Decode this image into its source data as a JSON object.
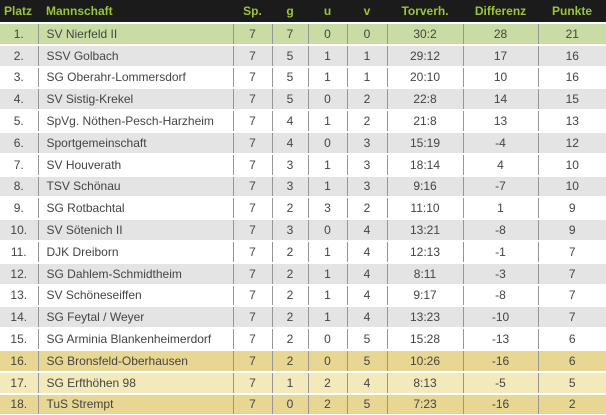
{
  "table": {
    "columns": [
      {
        "key": "platz",
        "label": "Platz"
      },
      {
        "key": "mannschaft",
        "label": "Mannschaft"
      },
      {
        "key": "sp",
        "label": "Sp."
      },
      {
        "key": "g",
        "label": "g"
      },
      {
        "key": "u",
        "label": "u"
      },
      {
        "key": "v",
        "label": "v"
      },
      {
        "key": "torverh",
        "label": "Torverh."
      },
      {
        "key": "differenz",
        "label": "Differenz"
      },
      {
        "key": "punkte",
        "label": "Punkte"
      }
    ],
    "rows": [
      {
        "platz": "1.",
        "mannschaft": "SV Nierfeld II",
        "sp": "7",
        "g": "7",
        "u": "0",
        "v": "0",
        "torverh": "30:2",
        "differenz": "28",
        "punkte": "21",
        "highlight": "leader"
      },
      {
        "platz": "2.",
        "mannschaft": "SSV Golbach",
        "sp": "7",
        "g": "5",
        "u": "1",
        "v": "1",
        "torverh": "29:12",
        "differenz": "17",
        "punkte": "16",
        "highlight": "none"
      },
      {
        "platz": "3.",
        "mannschaft": "SG Oberahr-Lommersdorf",
        "sp": "7",
        "g": "5",
        "u": "1",
        "v": "1",
        "torverh": "20:10",
        "differenz": "10",
        "punkte": "16",
        "highlight": "none"
      },
      {
        "platz": "4.",
        "mannschaft": "SV Sistig-Krekel",
        "sp": "7",
        "g": "5",
        "u": "0",
        "v": "2",
        "torverh": "22:8",
        "differenz": "14",
        "punkte": "15",
        "highlight": "none"
      },
      {
        "platz": "5.",
        "mannschaft": "SpVg. Nöthen-Pesch-Harzheim",
        "sp": "7",
        "g": "4",
        "u": "1",
        "v": "2",
        "torverh": "21:8",
        "differenz": "13",
        "punkte": "13",
        "highlight": "none"
      },
      {
        "platz": "6.",
        "mannschaft": "Sportgemeinschaft",
        "sp": "7",
        "g": "4",
        "u": "0",
        "v": "3",
        "torverh": "15:19",
        "differenz": "-4",
        "punkte": "12",
        "highlight": "none"
      },
      {
        "platz": "7.",
        "mannschaft": "SV Houverath",
        "sp": "7",
        "g": "3",
        "u": "1",
        "v": "3",
        "torverh": "18:14",
        "differenz": "4",
        "punkte": "10",
        "highlight": "none"
      },
      {
        "platz": "8.",
        "mannschaft": "TSV Schönau",
        "sp": "7",
        "g": "3",
        "u": "1",
        "v": "3",
        "torverh": "9:16",
        "differenz": "-7",
        "punkte": "10",
        "highlight": "none"
      },
      {
        "platz": "9.",
        "mannschaft": "SG Rotbachtal",
        "sp": "7",
        "g": "2",
        "u": "3",
        "v": "2",
        "torverh": "11:10",
        "differenz": "1",
        "punkte": "9",
        "highlight": "none"
      },
      {
        "platz": "10.",
        "mannschaft": "SV Sötenich II",
        "sp": "7",
        "g": "3",
        "u": "0",
        "v": "4",
        "torverh": "13:21",
        "differenz": "-8",
        "punkte": "9",
        "highlight": "none"
      },
      {
        "platz": "11.",
        "mannschaft": "DJK Dreiborn",
        "sp": "7",
        "g": "2",
        "u": "1",
        "v": "4",
        "torverh": "12:13",
        "differenz": "-1",
        "punkte": "7",
        "highlight": "none"
      },
      {
        "platz": "12.",
        "mannschaft": "SG Dahlem-Schmidtheim",
        "sp": "7",
        "g": "2",
        "u": "1",
        "v": "4",
        "torverh": "8:11",
        "differenz": "-3",
        "punkte": "7",
        "highlight": "none"
      },
      {
        "platz": "13.",
        "mannschaft": "SV Schöneseiffen",
        "sp": "7",
        "g": "2",
        "u": "1",
        "v": "4",
        "torverh": "9:17",
        "differenz": "-8",
        "punkte": "7",
        "highlight": "none"
      },
      {
        "platz": "14.",
        "mannschaft": "SG Feytal / Weyer",
        "sp": "7",
        "g": "2",
        "u": "1",
        "v": "4",
        "torverh": "13:23",
        "differenz": "-10",
        "punkte": "7",
        "highlight": "none"
      },
      {
        "platz": "15.",
        "mannschaft": "SG Arminia Blankenheimerdorf",
        "sp": "7",
        "g": "2",
        "u": "0",
        "v": "5",
        "torverh": "15:28",
        "differenz": "-13",
        "punkte": "6",
        "highlight": "none"
      },
      {
        "platz": "16.",
        "mannschaft": "SG Bronsfeld-Oberhausen",
        "sp": "7",
        "g": "2",
        "u": "0",
        "v": "5",
        "torverh": "10:26",
        "differenz": "-16",
        "punkte": "6",
        "highlight": "relegation"
      },
      {
        "platz": "17.",
        "mannschaft": "SG Erfthöhen 98",
        "sp": "7",
        "g": "1",
        "u": "2",
        "v": "4",
        "torverh": "8:13",
        "differenz": "-5",
        "punkte": "5",
        "highlight": "relegation"
      },
      {
        "platz": "18.",
        "mannschaft": "TuS Strempt",
        "sp": "7",
        "g": "0",
        "u": "2",
        "v": "5",
        "torverh": "7:23",
        "differenz": "-16",
        "punkte": "2",
        "highlight": "relegation"
      }
    ],
    "colors": {
      "header_bg": "#1b1b1b",
      "header_text": "#9cc435",
      "leader_row": "#cadca3",
      "stripe_gray": "#e4e4e4",
      "stripe_white": "#ffffff",
      "relegation_dark": "#e8d793",
      "relegation_light": "#f3e9ba",
      "divider": "#969696",
      "body_text": "#444444"
    }
  }
}
